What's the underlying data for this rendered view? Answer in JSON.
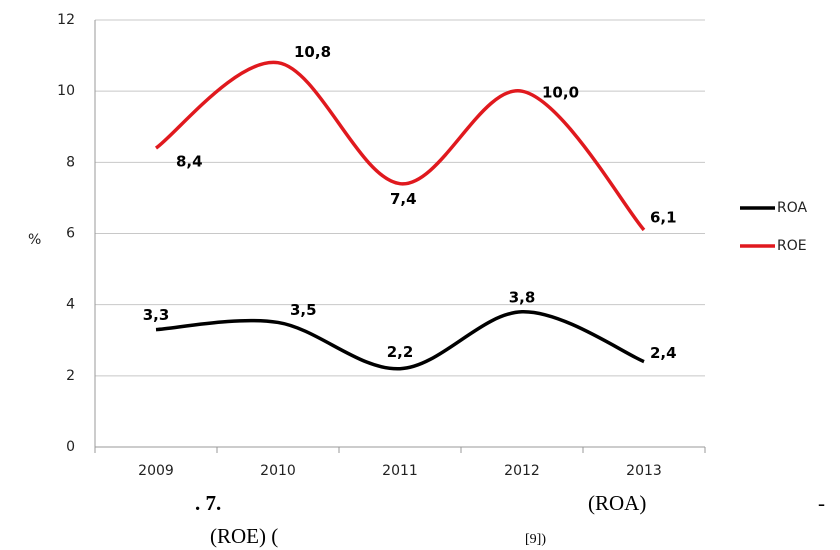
{
  "chart_data": {
    "type": "line",
    "ylabel": "%",
    "categories": [
      "2009",
      "2010",
      "2011",
      "2012",
      "2013"
    ],
    "series": [
      {
        "name": "ROA",
        "color": "#000000",
        "values": [
          3.3,
          3.5,
          2.2,
          3.8,
          2.4
        ],
        "value_labels": [
          "3,3",
          "3,5",
          "2,2",
          "3,8",
          "2,4"
        ]
      },
      {
        "name": "ROE",
        "color": "#e0191e",
        "values": [
          8.4,
          10.8,
          7.4,
          10.0,
          6.1
        ],
        "value_labels": [
          "8,4",
          "10,8",
          "7,4",
          "10,0",
          "6,1"
        ]
      }
    ],
    "ylim": [
      0,
      12
    ],
    "yticks": [
      0,
      2,
      4,
      6,
      8,
      10,
      12
    ],
    "grid": true,
    "smooth": true,
    "legend": "right"
  },
  "caption": {
    "line1": [
      ". 7.",
      "(ROA)",
      "-"
    ],
    "line2": [
      "(ROE) (",
      "[9])"
    ]
  }
}
